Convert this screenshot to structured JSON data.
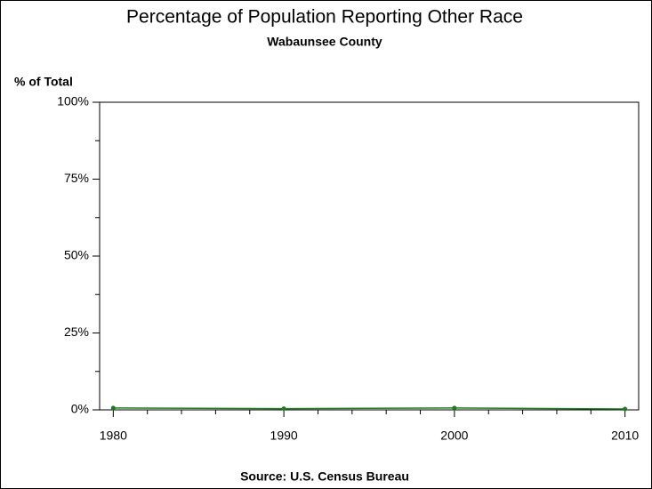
{
  "chart_data": {
    "type": "line",
    "title": "Percentage of Population Reporting Other Race",
    "subtitle": "Wabaunsee County",
    "y_label": "% of Total",
    "source": "Source: U.S. Census Bureau",
    "x": [
      1980,
      1990,
      2000,
      2010
    ],
    "values": [
      0.6,
      0.4,
      0.6,
      0.3
    ],
    "color": "#1f7a1f",
    "xlim": [
      1979.2,
      2010.8
    ],
    "xticks": [
      1980,
      1990,
      2000,
      2010
    ],
    "xminorticks": [
      1982,
      1984,
      1986,
      1988,
      1992,
      1994,
      1996,
      1998,
      2002,
      2004,
      2006,
      2008
    ],
    "ylim": [
      0,
      100
    ],
    "yticks": [
      {
        "value": 0,
        "label": "0%"
      },
      {
        "value": 25,
        "label": "25%"
      },
      {
        "value": 50,
        "label": "50%"
      },
      {
        "value": 75,
        "label": "75%"
      },
      {
        "value": 100,
        "label": "100%"
      }
    ],
    "yminorticks": [
      12.5,
      37.5,
      62.5,
      87.5
    ],
    "grid": false
  }
}
